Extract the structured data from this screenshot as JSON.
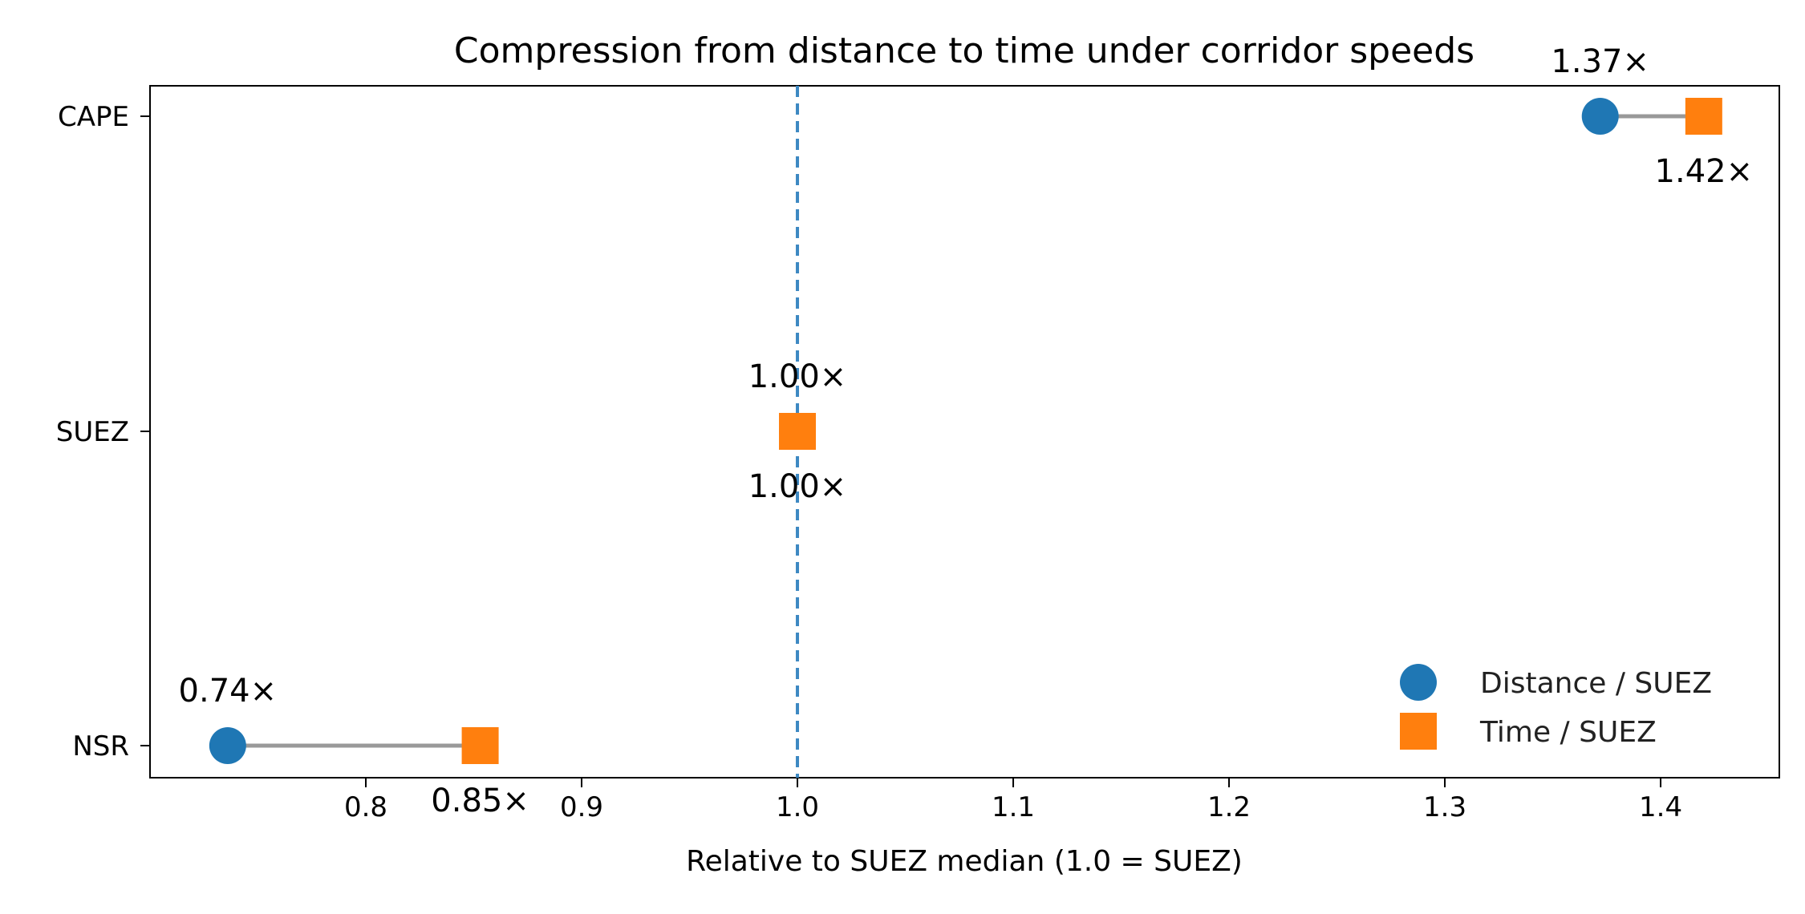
{
  "chart_data": {
    "type": "dumbbell",
    "title": "Compression from distance to time under corridor speeds",
    "xlabel": "Relative to SUEZ median (1.0 = SUEZ)",
    "ylabel": "",
    "xlim": [
      0.7,
      1.455
    ],
    "xticks": [
      0.8,
      0.9,
      1.0,
      1.1,
      1.2,
      1.3,
      1.4
    ],
    "xtick_labels": [
      "0.8",
      "0.9",
      "1.0",
      "1.1",
      "1.2",
      "1.3",
      "1.4"
    ],
    "categories": [
      "CAPE",
      "SUEZ",
      "NSR"
    ],
    "reference_line": {
      "x": 1.0,
      "style": "dashed",
      "color": "#3d88c2"
    },
    "series": [
      {
        "name": "Distance / SUEZ",
        "marker": "circle",
        "color": "#1f77b4",
        "values": [
          1.372,
          1.0,
          0.736
        ],
        "labels": [
          "1.37×",
          "1.00×",
          "0.74×"
        ]
      },
      {
        "name": "Time / SUEZ",
        "marker": "square",
        "color": "#ff7f0e",
        "values": [
          1.42,
          1.0,
          0.853
        ],
        "labels": [
          "1.42×",
          "1.00×",
          "0.85×"
        ]
      }
    ],
    "connector_color": "#999999",
    "legend_position": "lower-right",
    "grid": false
  }
}
